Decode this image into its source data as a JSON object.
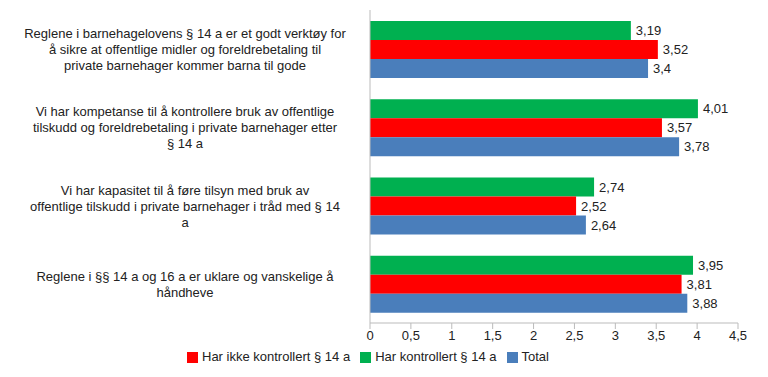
{
  "chart_data": {
    "type": "bar",
    "orientation": "horizontal",
    "categories": [
      "Reglene i barnehagelovens § 14 a er et godt verktøy for å sikre at offentlige midler og foreldrebetaling til private barnehager kommer barna til gode",
      "Vi har kompetanse til å kontrollere bruk av offentlige tilskudd og foreldrebetaling i private barnehager etter § 14 a",
      "Vi har kapasitet til å føre tilsyn med bruk av offentlige tilskudd i private barnehager i tråd med § 14 a",
      "Reglene i §§ 14 a og 16 a er uklare og vanskelige å håndheve"
    ],
    "series": [
      {
        "name": "Har kontrollert § 14 a",
        "color": "#00b050",
        "values": [
          3.19,
          4.01,
          2.74,
          3.95
        ],
        "value_labels": [
          "3,19",
          "4,01",
          "2,74",
          "3,95"
        ]
      },
      {
        "name": "Har ikke kontrollert § 14 a",
        "color": "#ff0000",
        "values": [
          3.52,
          3.57,
          2.52,
          3.81
        ],
        "value_labels": [
          "3,52",
          "3,57",
          "2,52",
          "3,81"
        ]
      },
      {
        "name": "Total",
        "color": "#4a7ebb",
        "values": [
          3.4,
          3.78,
          2.64,
          3.88
        ],
        "value_labels": [
          "3,4",
          "3,78",
          "2,64",
          "3,88"
        ]
      }
    ],
    "xlim": [
      0,
      4.5
    ],
    "xticks": [
      0,
      {
        "value": 0.5,
        "label": "0,5"
      },
      1,
      {
        "value": 1.5,
        "label": "1,5"
      },
      2,
      {
        "value": 2.5,
        "label": "2,5"
      },
      3,
      {
        "value": 3.5,
        "label": "3,5"
      },
      4,
      {
        "value": 4.5,
        "label": "4,5"
      }
    ],
    "grid": false,
    "data_labels": true,
    "legend": "bottom"
  }
}
